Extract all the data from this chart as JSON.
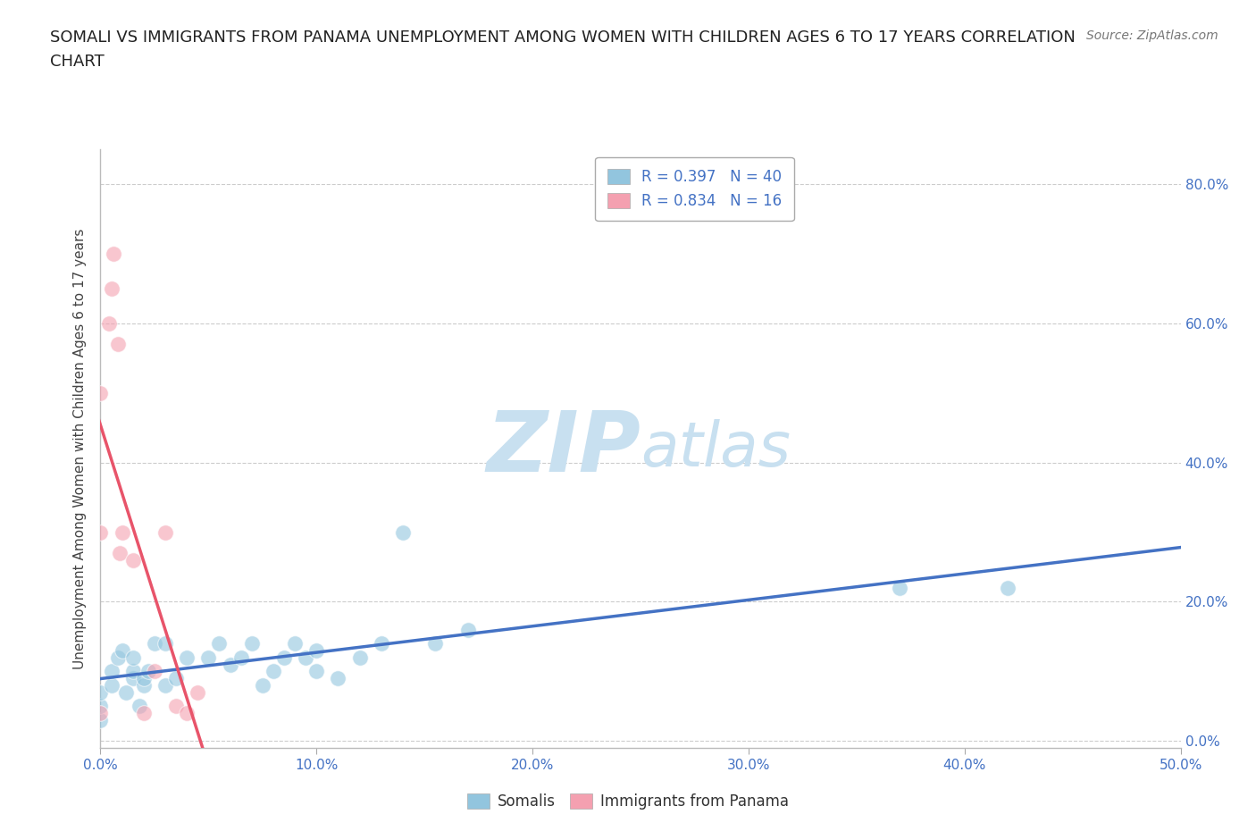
{
  "title_line1": "SOMALI VS IMMIGRANTS FROM PANAMA UNEMPLOYMENT AMONG WOMEN WITH CHILDREN AGES 6 TO 17 YEARS CORRELATION",
  "title_line2": "CHART",
  "source_text": "Source: ZipAtlas.com",
  "ylabel": "Unemployment Among Women with Children Ages 6 to 17 years",
  "xlim": [
    0,
    0.5
  ],
  "ylim": [
    -0.01,
    0.85
  ],
  "background_color": "#ffffff",
  "watermark_zip": "ZIP",
  "watermark_atlas": "atlas",
  "watermark_color_zip": "#c8e0f0",
  "watermark_color_atlas": "#c8e0f0",
  "somali_color": "#92c5de",
  "panama_color": "#f4a0b0",
  "somali_R": 0.397,
  "somali_N": 40,
  "panama_R": 0.834,
  "panama_N": 16,
  "legend_label1": "Somalis",
  "legend_label2": "Immigrants from Panama",
  "somali_line_color": "#4472c4",
  "panama_line_color": "#e8546a",
  "somali_scatter_x": [
    0.0,
    0.0,
    0.0,
    0.005,
    0.005,
    0.008,
    0.01,
    0.012,
    0.015,
    0.015,
    0.015,
    0.018,
    0.02,
    0.02,
    0.022,
    0.025,
    0.03,
    0.03,
    0.035,
    0.04,
    0.05,
    0.055,
    0.06,
    0.065,
    0.07,
    0.075,
    0.08,
    0.085,
    0.09,
    0.095,
    0.1,
    0.1,
    0.11,
    0.12,
    0.13,
    0.14,
    0.155,
    0.17,
    0.37,
    0.42
  ],
  "somali_scatter_y": [
    0.03,
    0.05,
    0.07,
    0.08,
    0.1,
    0.12,
    0.13,
    0.07,
    0.09,
    0.1,
    0.12,
    0.05,
    0.08,
    0.09,
    0.1,
    0.14,
    0.08,
    0.14,
    0.09,
    0.12,
    0.12,
    0.14,
    0.11,
    0.12,
    0.14,
    0.08,
    0.1,
    0.12,
    0.14,
    0.12,
    0.1,
    0.13,
    0.09,
    0.12,
    0.14,
    0.3,
    0.14,
    0.16,
    0.22,
    0.22
  ],
  "panama_scatter_x": [
    0.0,
    0.0,
    0.0,
    0.004,
    0.005,
    0.006,
    0.008,
    0.009,
    0.01,
    0.015,
    0.02,
    0.025,
    0.03,
    0.035,
    0.04,
    0.045
  ],
  "panama_scatter_y": [
    0.04,
    0.3,
    0.5,
    0.6,
    0.65,
    0.7,
    0.57,
    0.27,
    0.3,
    0.26,
    0.04,
    0.1,
    0.3,
    0.05,
    0.04,
    0.07
  ],
  "title_fontsize": 13,
  "axis_label_fontsize": 11,
  "tick_fontsize": 11,
  "legend_fontsize": 12,
  "source_fontsize": 10,
  "ytick_vals": [
    0.0,
    0.2,
    0.4,
    0.6,
    0.8
  ],
  "ytick_labels": [
    "0.0%",
    "20.0%",
    "40.0%",
    "60.0%",
    "80.0%"
  ],
  "xtick_vals": [
    0.0,
    0.1,
    0.2,
    0.3,
    0.4,
    0.5
  ],
  "xtick_labels": [
    "0.0%",
    "10.0%",
    "20.0%",
    "30.0%",
    "40.0%",
    "50.0%"
  ]
}
